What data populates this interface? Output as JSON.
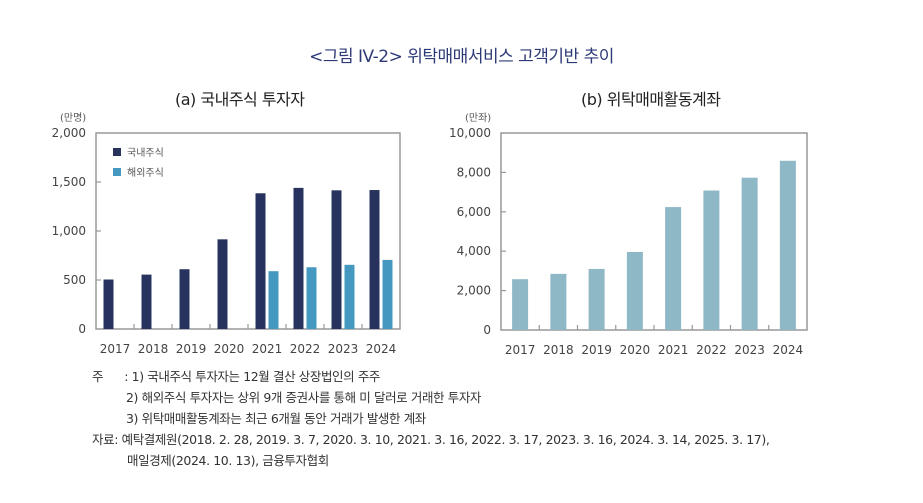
{
  "figure_title": "<그림 IV-2> 위탁매매서비스 고객기반 추이",
  "chart_data": [
    {
      "type": "bar",
      "title": "(a) 국내주식 투자자",
      "unit": "(만명)",
      "xlabel": "",
      "ylabel": "",
      "categories": [
        "2017",
        "2018",
        "2019",
        "2020",
        "2021",
        "2022",
        "2023",
        "2024"
      ],
      "series": [
        {
          "name": "국내주식",
          "color": "#27335e",
          "values": [
            505,
            555,
            610,
            915,
            1385,
            1440,
            1415,
            1418
          ]
        },
        {
          "name": "해외주식",
          "color": "#4599c0",
          "values": [
            null,
            null,
            null,
            null,
            590,
            630,
            655,
            705
          ]
        }
      ],
      "ylim": [
        0,
        2000
      ],
      "yticks": [
        0,
        500,
        1000,
        1500,
        2000
      ],
      "ytick_labels": [
        "0",
        "500",
        "1,000",
        "1,500",
        "2,000"
      ],
      "legend": "top-left",
      "grid": false
    },
    {
      "type": "bar",
      "title": "(b) 위탁매매활동계좌",
      "unit": "(만좌)",
      "xlabel": "",
      "ylabel": "",
      "categories": [
        "2017",
        "2018",
        "2019",
        "2020",
        "2021",
        "2022",
        "2023",
        "2024"
      ],
      "series": [
        {
          "name": "위탁매매활동계좌",
          "color": "#8fb8c7",
          "values": [
            2580,
            2850,
            3100,
            3960,
            6240,
            7080,
            7730,
            8590
          ]
        }
      ],
      "ylim": [
        0,
        10000
      ],
      "yticks": [
        0,
        2000,
        4000,
        6000,
        8000,
        10000
      ],
      "ytick_labels": [
        "0",
        "2,000",
        "4,000",
        "6,000",
        "8,000",
        "10,000"
      ],
      "legend": "none",
      "grid": false
    }
  ],
  "notes": {
    "label": "주",
    "separator": ":",
    "items": [
      "1) 국내주식 투자자는 12월 결산 상장법인의 주주",
      "2) 해외주식 투자자는 상위 9개 증권사를 통해 미 달러로 거래한 투자자",
      "3) 위탁매매활동계좌는 최근 6개월 동안 거래가 발생한 계좌"
    ]
  },
  "source": {
    "label": "자료:",
    "lines": [
      "예탁결제원(2018. 2. 28, 2019. 3. 7, 2020. 3. 10, 2021. 3. 16, 2022. 3. 17, 2023. 3. 16, 2024. 3. 14, 2025. 3. 17),",
      "매일경제(2024. 10. 13), 금융투자협회"
    ]
  },
  "colors": {
    "title": "#2e3a78",
    "axis": "#999999"
  }
}
